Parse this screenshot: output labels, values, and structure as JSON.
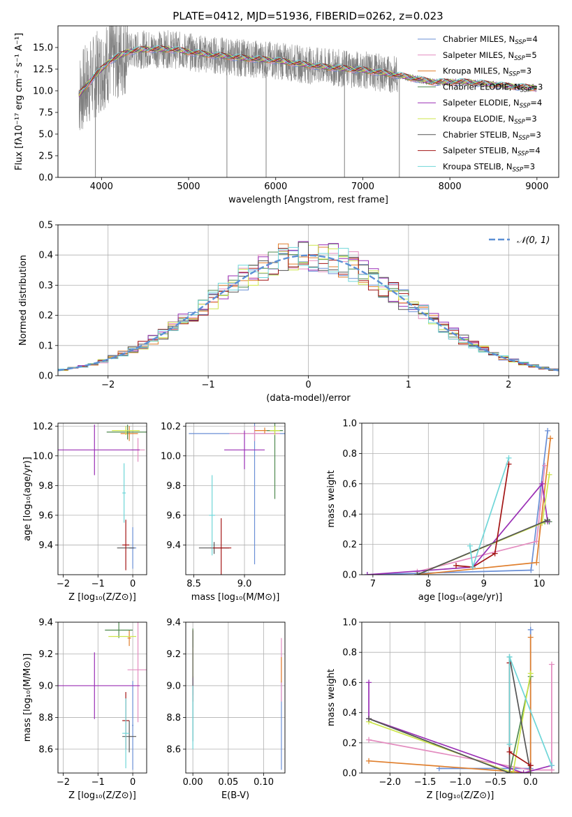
{
  "figure": {
    "title": "PLATE=0412, MJD=51936, FIBERID=0262, z=0.023"
  },
  "models": [
    {
      "name": "Chabrier MILES",
      "nssp": "4",
      "color": "#6a8fd6"
    },
    {
      "name": "Salpeter MILES",
      "nssp": "5",
      "color": "#e38cbf"
    },
    {
      "name": "Kroupa MILES",
      "nssp": "3",
      "color": "#e07f2d"
    },
    {
      "name": "Chabrier ELODIE",
      "nssp": "3",
      "color": "#4f8a4f"
    },
    {
      "name": "Salpeter ELODIE",
      "nssp": "4",
      "color": "#9a2fb5"
    },
    {
      "name": "Kroupa ELODIE",
      "nssp": "3",
      "color": "#cde64a"
    },
    {
      "name": "Chabrier STELIB",
      "nssp": "3",
      "color": "#555555"
    },
    {
      "name": "Salpeter STELIB",
      "nssp": "4",
      "color": "#a31515"
    },
    {
      "name": "Kroupa STELIB",
      "nssp": "3",
      "color": "#6fd6d8"
    }
  ],
  "chart_data": [
    {
      "type": "line",
      "xlabel": "wavelength [Angstrom, rest frame]",
      "ylabel": "Flux [fλ10⁻¹⁷ erg cm⁻² s⁻¹ A⁻¹]",
      "xlim": [
        3500,
        9250
      ],
      "ylim": [
        0,
        17.5
      ],
      "xticks": [
        "4000",
        "5000",
        "6000",
        "7000",
        "8000",
        "9000"
      ],
      "yticks": [
        "0.0",
        "2.5",
        "5.0",
        "7.5",
        "10.0",
        "12.5",
        "15.0"
      ],
      "legend_position": "top-right",
      "spectrum_continuum": {
        "x": [
          3700,
          3900,
          4100,
          4300,
          4500,
          4800,
          5200,
          5600,
          6000,
          6500,
          7000,
          7400,
          7800,
          8200,
          8600,
          9000
        ],
        "y": [
          9.0,
          11.5,
          13.5,
          14.5,
          14.8,
          14.8,
          14.2,
          13.8,
          13.5,
          12.8,
          12.4,
          11.8,
          11.0,
          11.0,
          10.6,
          10.3
        ]
      },
      "noisy_below": 7400,
      "spikes_down": [
        3930,
        5440,
        5890,
        6790,
        7420
      ]
    },
    {
      "type": "histogram",
      "xlabel": "(data-model)/error",
      "ylabel": "Normed distribution",
      "xlim": [
        -2.5,
        2.5
      ],
      "ylim": [
        0,
        0.5
      ],
      "xticks": [
        "-2",
        "-1",
        "0",
        "1",
        "2"
      ],
      "yticks": [
        "0.0",
        "0.1",
        "0.2",
        "0.3",
        "0.4",
        "0.5"
      ],
      "reference_label": "𝒩(0, 1)",
      "reference_color": "#5c8fd4",
      "bin_width": 0.1,
      "legend_position": "top-right"
    },
    {
      "type": "scatter",
      "xlabel": "Z [log₁₀(Z/Z⊙)]",
      "ylabel": "age  [log₁₀(age/yr)]",
      "xlim": [
        -2.15,
        0.4
      ],
      "ylim": [
        9.2,
        10.22
      ],
      "xticks": [
        "-2",
        "-1",
        "0"
      ],
      "yticks": [
        "9.4",
        "9.6",
        "9.8",
        "10.0",
        "10.2"
      ],
      "points": [
        {
          "model": 0,
          "x": 0.0,
          "y": 9.38,
          "dx": 0.1,
          "dy": 0.14
        },
        {
          "model": 1,
          "x": 0.15,
          "y": 10.04,
          "dx": 0.2,
          "dy": 0.08
        },
        {
          "model": 2,
          "x": -0.1,
          "y": 10.15,
          "dx": 0.25,
          "dy": 0.05
        },
        {
          "model": 3,
          "x": -0.15,
          "y": 10.16,
          "dx": 0.6,
          "dy": 0.05
        },
        {
          "model": 4,
          "x": -1.1,
          "y": 10.04,
          "dx": 1.3,
          "dy": 0.17
        },
        {
          "model": 5,
          "x": -0.2,
          "y": 10.17,
          "dx": 0.4,
          "dy": 0.03
        },
        {
          "model": 6,
          "x": -0.2,
          "y": 9.38,
          "dx": 0.25,
          "dy": 0.0
        },
        {
          "model": 7,
          "x": -0.2,
          "y": 9.4,
          "dx": 0.1,
          "dy": 0.17
        },
        {
          "model": 8,
          "x": -0.25,
          "y": 9.75,
          "dx": 0.05,
          "dy": 0.2
        }
      ]
    },
    {
      "type": "scatter",
      "xlabel": "mass [log₁₀(M/M⊙)]",
      "ylabel": "",
      "xlim": [
        8.42,
        9.4
      ],
      "ylim": [
        9.2,
        10.22
      ],
      "xticks": [
        "8.5",
        "9.0"
      ],
      "yticks": [
        "9.4",
        "9.6",
        "9.8",
        "10.0",
        "10.2"
      ],
      "points": [
        {
          "model": 0,
          "x": 9.1,
          "y": 10.15,
          "dx": 0.65,
          "dy": 0.88
        },
        {
          "model": 1,
          "x": 9.1,
          "y": 10.15,
          "dx": 0.25,
          "dy": 0.05
        },
        {
          "model": 2,
          "x": 9.2,
          "y": 10.17,
          "dx": 0.1,
          "dy": 0.02
        },
        {
          "model": 3,
          "x": 9.3,
          "y": 10.17,
          "dx": 0.08,
          "dy": 0.46
        },
        {
          "model": 4,
          "x": 9.0,
          "y": 10.04,
          "dx": 0.2,
          "dy": 0.13
        },
        {
          "model": 5,
          "x": 9.3,
          "y": 10.17,
          "dx": 0.05,
          "dy": 0.03
        },
        {
          "model": 6,
          "x": 8.7,
          "y": 9.38,
          "dx": 0.15,
          "dy": 0.04
        },
        {
          "model": 7,
          "x": 8.77,
          "y": 9.38,
          "dx": 0.1,
          "dy": 0.2
        },
        {
          "model": 8,
          "x": 8.68,
          "y": 9.6,
          "dx": 0.03,
          "dy": 0.27
        }
      ]
    },
    {
      "type": "line",
      "xlabel": "age  [log₁₀(age/yr)]",
      "ylabel": "mass weight",
      "xlim": [
        6.8,
        10.35
      ],
      "ylim": [
        0,
        1
      ],
      "xticks": [
        "7",
        "8",
        "9",
        "10"
      ],
      "yticks": [
        "0.0",
        "0.2",
        "0.4",
        "0.6",
        "0.8",
        "1.0"
      ],
      "series": [
        {
          "model": 0,
          "x": [
            6.9,
            9.85,
            10.15
          ],
          "y": [
            0.0,
            0.03,
            0.95
          ]
        },
        {
          "model": 1,
          "x": [
            7.8,
            9.95,
            10.1
          ],
          "y": [
            0.02,
            0.22,
            0.72
          ]
        },
        {
          "model": 2,
          "x": [
            7.8,
            9.95,
            10.2
          ],
          "y": [
            0.0,
            0.08,
            0.9
          ]
        },
        {
          "model": 3,
          "x": [
            7.8,
            10.1,
            10.18
          ],
          "y": [
            0.0,
            0.35,
            0.35
          ]
        },
        {
          "model": 4,
          "x": [
            6.9,
            8.8,
            10.05,
            10.15
          ],
          "y": [
            0.0,
            0.05,
            0.6,
            0.35
          ]
        },
        {
          "model": 5,
          "x": [
            7.8,
            10.05,
            10.18
          ],
          "y": [
            0.0,
            0.34,
            0.66
          ]
        },
        {
          "model": 6,
          "x": [
            7.8,
            10.15
          ],
          "y": [
            0.0,
            0.36
          ]
        },
        {
          "model": 7,
          "x": [
            8.5,
            8.8,
            9.2,
            9.45
          ],
          "y": [
            0.06,
            0.05,
            0.14,
            0.73
          ]
        },
        {
          "model": 8,
          "x": [
            8.75,
            8.8,
            9.45
          ],
          "y": [
            0.19,
            0.05,
            0.77
          ]
        }
      ]
    },
    {
      "type": "scatter",
      "xlabel": "Z [log₁₀(Z/Z⊙)]",
      "ylabel": "mass [log₁₀(M/M⊙)]",
      "xlim": [
        -2.15,
        0.4
      ],
      "ylim": [
        8.45,
        9.4
      ],
      "xticks": [
        "-2",
        "-1",
        "0"
      ],
      "yticks": [
        "8.6",
        "8.8",
        "9.0",
        "9.2",
        "9.4"
      ],
      "points": [
        {
          "model": 0,
          "x": 0.0,
          "y": 8.75,
          "dx": 0.02,
          "dy": 0.28
        },
        {
          "model": 1,
          "x": 0.15,
          "y": 9.1,
          "dx": 0.3,
          "dy": 0.33
        },
        {
          "model": 2,
          "x": -0.1,
          "y": 9.3,
          "dx": 0.05,
          "dy": 0.05
        },
        {
          "model": 3,
          "x": -0.4,
          "y": 9.35,
          "dx": 0.4,
          "dy": 0.05
        },
        {
          "model": 4,
          "x": -1.1,
          "y": 9.0,
          "dx": 1.3,
          "dy": 0.21
        },
        {
          "model": 5,
          "x": -0.3,
          "y": 9.31,
          "dx": 0.4,
          "dy": 0.0
        },
        {
          "model": 6,
          "x": -0.1,
          "y": 8.68,
          "dx": 0.2,
          "dy": 0.1
        },
        {
          "model": 7,
          "x": -0.2,
          "y": 8.78,
          "dx": 0.1,
          "dy": 0.18
        },
        {
          "model": 8,
          "x": -0.2,
          "y": 8.7,
          "dx": 0.1,
          "dy": 0.22
        }
      ]
    },
    {
      "type": "scatter",
      "xlabel": "E(B-V)",
      "ylabel": "",
      "xlim": [
        -0.01,
        0.13
      ],
      "ylim": [
        8.45,
        9.4
      ],
      "xticks": [
        "0.00",
        "0.05",
        "0.10"
      ],
      "yticks": [
        "8.6",
        "8.8",
        "9.0",
        "9.2",
        "9.4"
      ],
      "points": [
        {
          "model": 0,
          "x": 0.125,
          "y": 8.75,
          "dx": 0.0,
          "dy": 0.28
        },
        {
          "model": 1,
          "x": 0.125,
          "y": 9.1,
          "dx": 0.0,
          "dy": 0.2
        },
        {
          "model": 2,
          "x": 0.125,
          "y": 9.1,
          "dx": 0.0,
          "dy": 0.08
        },
        {
          "model": 3,
          "x": 0.0,
          "y": 9.3,
          "dx": 0.0,
          "dy": 0.06
        },
        {
          "model": 4,
          "x": 0.0,
          "y": 9.0,
          "dx": 0.0,
          "dy": 0.06
        },
        {
          "model": 5,
          "x": 0.0,
          "y": 9.2,
          "dx": 0.0,
          "dy": 0.15
        },
        {
          "model": 6,
          "x": 0.0,
          "y": 9.0,
          "dx": 0.0,
          "dy": 0.35
        },
        {
          "model": 7,
          "x": 0.0,
          "y": 8.95,
          "dx": 0.0,
          "dy": 0.05
        },
        {
          "model": 8,
          "x": 0.0,
          "y": 8.8,
          "dx": 0.0,
          "dy": 0.2
        }
      ]
    },
    {
      "type": "line",
      "xlabel": "Z [log₁₀(Z/Z⊙)]",
      "ylabel": "mass weight",
      "xlim": [
        -2.4,
        0.4
      ],
      "ylim": [
        0,
        1
      ],
      "xticks": [
        "-2.0",
        "-1.5",
        "-1.0",
        "-0.5",
        "0.0"
      ],
      "yticks": [
        "0.0",
        "0.2",
        "0.4",
        "0.6",
        "0.8",
        "1.0"
      ],
      "series": [
        {
          "model": 0,
          "x": [
            -1.3,
            0.0,
            0.0
          ],
          "y": [
            0.03,
            0.03,
            0.95
          ]
        },
        {
          "model": 1,
          "x": [
            -2.3,
            0.0,
            0.3,
            0.3
          ],
          "y": [
            0.22,
            0.02,
            0.02,
            0.72
          ]
        },
        {
          "model": 2,
          "x": [
            -2.3,
            0.0,
            0.0
          ],
          "y": [
            0.08,
            0.0,
            0.9
          ]
        },
        {
          "model": 3,
          "x": [
            -2.3,
            -0.3,
            0.0
          ],
          "y": [
            0.36,
            0.0,
            0.64
          ]
        },
        {
          "model": 4,
          "x": [
            -2.3,
            -2.3,
            -0.1,
            0.3,
            0.3
          ],
          "y": [
            0.6,
            0.36,
            0.0,
            0.05,
            0.05
          ]
        },
        {
          "model": 5,
          "x": [
            -2.3,
            -0.25,
            0.0
          ],
          "y": [
            0.34,
            0.0,
            0.66
          ]
        },
        {
          "model": 6,
          "x": [
            -2.3,
            -0.3,
            -0.3,
            0.0
          ],
          "y": [
            0.36,
            0.0,
            0.77,
            0.0
          ]
        },
        {
          "model": 7,
          "x": [
            -0.3,
            -0.3,
            0.0,
            0.0
          ],
          "y": [
            0.73,
            0.14,
            0.05,
            0.05
          ]
        },
        {
          "model": 8,
          "x": [
            -0.3,
            -0.3,
            0.3
          ],
          "y": [
            0.19,
            0.77,
            0.05
          ]
        }
      ]
    }
  ]
}
